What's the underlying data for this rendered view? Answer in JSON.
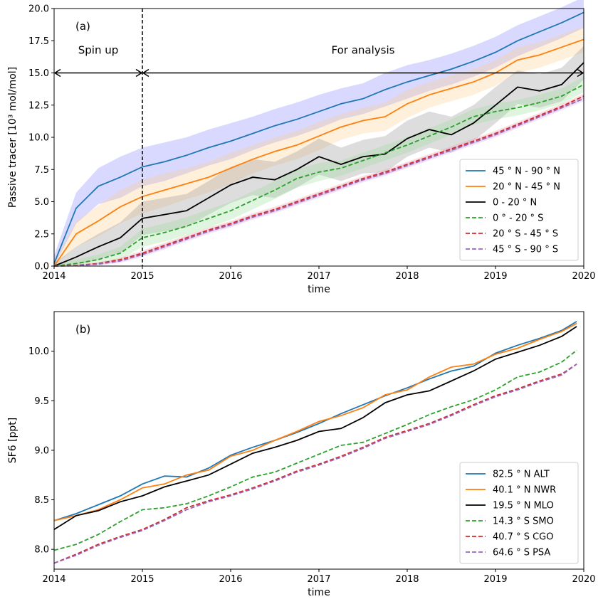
{
  "chart_data": [
    {
      "type": "line",
      "panel_label": "(a)",
      "xlabel": "time",
      "ylabel": "Passive tracer [10³ mol/mol]",
      "xlim": [
        2014,
        2020
      ],
      "ylim": [
        0,
        20
      ],
      "x_ticks": [
        "2014",
        "2015",
        "2016",
        "2017",
        "2018",
        "2019",
        "2020"
      ],
      "y_ticks": [
        "0.0",
        "2.5",
        "5.0",
        "7.5",
        "10.0",
        "12.5",
        "15.0",
        "17.5",
        "20.0"
      ],
      "grid": false,
      "legend_position": "lower-right",
      "annotations": [
        {
          "text": "Spin up",
          "x": 2014.5,
          "y": 16.5
        },
        {
          "text": "For analysis",
          "x": 2017.5,
          "y": 16.5
        }
      ],
      "vline": {
        "x": 2015,
        "style": "dashed"
      },
      "arrows": [
        {
          "from": [
            2014,
            15
          ],
          "to": [
            2015,
            15
          ]
        },
        {
          "from": [
            2015,
            15
          ],
          "to": [
            2020,
            15
          ]
        }
      ],
      "x": [
        2014.0,
        2014.25,
        2014.5,
        2014.75,
        2015.0,
        2015.25,
        2015.5,
        2015.75,
        2016.0,
        2016.25,
        2016.5,
        2016.75,
        2017.0,
        2017.25,
        2017.5,
        2017.75,
        2018.0,
        2018.25,
        2018.5,
        2018.75,
        2019.0,
        2019.25,
        2019.5,
        2019.75,
        2020.0
      ],
      "series": [
        {
          "name": "45$^\\circ$N - 90$^\\circ$N",
          "label": "45 ° N - 90 ° N",
          "color": "#1f77b4",
          "dash": "solid",
          "values": [
            0.2,
            4.5,
            6.2,
            6.9,
            7.7,
            8.1,
            8.6,
            9.2,
            9.7,
            10.3,
            10.9,
            11.4,
            12.0,
            12.6,
            13.0,
            13.7,
            14.3,
            14.8,
            15.3,
            15.9,
            16.6,
            17.5,
            18.2,
            18.9,
            19.7
          ],
          "band": [
            0.6,
            1.2,
            1.4,
            1.6,
            1.5,
            1.5,
            1.4,
            1.4,
            1.4,
            1.3,
            1.3,
            1.3,
            1.3,
            1.2,
            1.2,
            1.3,
            1.3,
            1.2,
            1.2,
            1.2,
            1.2,
            1.2,
            1.2,
            1.2,
            1.2
          ],
          "band_color": "#8080ff"
        },
        {
          "name": "20$^\\circ$N - 45$^\\circ$N",
          "label": "20 ° N - 45 ° N",
          "color": "#ff7f0e",
          "dash": "solid",
          "values": [
            0.0,
            2.5,
            3.5,
            4.6,
            5.4,
            5.9,
            6.4,
            6.9,
            7.6,
            8.3,
            8.9,
            9.4,
            10.1,
            10.8,
            11.3,
            11.6,
            12.6,
            13.3,
            13.8,
            14.3,
            15.0,
            16.0,
            16.4,
            17.0,
            17.6
          ],
          "band": [
            0.3,
            1.0,
            1.2,
            1.3,
            1.3,
            1.3,
            1.2,
            1.2,
            1.2,
            1.1,
            1.1,
            1.1,
            1.1,
            1.0,
            1.0,
            1.1,
            1.1,
            1.0,
            1.0,
            1.0,
            1.0,
            1.0,
            1.0,
            1.0,
            1.0
          ],
          "band_color": "#ffcc88"
        },
        {
          "name": "0 - 20$^\\circ$N",
          "label": "0 - 20 ° N",
          "color": "#000000",
          "dash": "solid",
          "values": [
            0.0,
            0.7,
            1.5,
            2.2,
            3.7,
            4.0,
            4.3,
            5.3,
            6.3,
            6.9,
            6.7,
            7.5,
            8.5,
            7.9,
            8.5,
            8.7,
            9.9,
            10.6,
            10.2,
            11.1,
            12.5,
            13.9,
            13.6,
            14.1,
            15.8
          ],
          "band": [
            0.2,
            0.8,
            1.0,
            1.2,
            1.3,
            1.3,
            1.3,
            1.3,
            1.4,
            1.4,
            1.4,
            1.4,
            1.4,
            1.3,
            1.3,
            1.4,
            1.4,
            1.4,
            1.4,
            1.4,
            1.4,
            1.3,
            1.3,
            1.3,
            1.3
          ],
          "band_color": "#909090"
        },
        {
          "name": "0$^\\circ$ - 20$^\\circ$S",
          "label": "0 ° - 20 ° S",
          "color": "#2ca02c",
          "dash": "dashed",
          "values": [
            0.0,
            0.2,
            0.5,
            1.0,
            2.2,
            2.6,
            3.1,
            3.7,
            4.3,
            5.1,
            5.9,
            6.8,
            7.3,
            7.6,
            8.2,
            8.8,
            9.4,
            10.1,
            10.8,
            11.6,
            12.0,
            12.3,
            12.7,
            13.2,
            14.1
          ],
          "band": [
            0.1,
            0.3,
            0.4,
            0.5,
            0.7,
            0.7,
            0.7,
            0.7,
            0.7,
            0.7,
            0.7,
            0.7,
            0.7,
            0.6,
            0.6,
            0.6,
            0.6,
            0.6,
            0.6,
            0.6,
            0.6,
            0.6,
            0.6,
            0.6,
            0.6
          ],
          "band_color": "#99dd99"
        },
        {
          "name": "20$^\\circ$S - 45$^\\circ$S",
          "label": "20 ° S - 45 ° S",
          "color": "#d62728",
          "dash": "dashed",
          "values": [
            0.0,
            0.05,
            0.2,
            0.5,
            1.0,
            1.6,
            2.2,
            2.8,
            3.3,
            3.9,
            4.4,
            5.0,
            5.6,
            6.2,
            6.8,
            7.3,
            7.9,
            8.5,
            9.1,
            9.7,
            10.3,
            11.0,
            11.7,
            12.4,
            13.2
          ],
          "band": [
            0.0,
            0.05,
            0.1,
            0.15,
            0.2,
            0.2,
            0.2,
            0.2,
            0.2,
            0.2,
            0.2,
            0.2,
            0.2,
            0.2,
            0.2,
            0.2,
            0.2,
            0.2,
            0.2,
            0.2,
            0.2,
            0.2,
            0.2,
            0.2,
            0.2
          ],
          "band_color": "#ee9999"
        },
        {
          "name": "45$^\\circ$S - 90$^\\circ$S",
          "label": "45 ° S - 90 ° S",
          "color": "#9467bd",
          "dash": "dashed",
          "values": [
            0.0,
            0.03,
            0.15,
            0.4,
            0.9,
            1.5,
            2.1,
            2.7,
            3.2,
            3.8,
            4.3,
            4.9,
            5.5,
            6.1,
            6.7,
            7.2,
            7.8,
            8.4,
            9.0,
            9.6,
            10.2,
            10.9,
            11.6,
            12.3,
            13.0
          ],
          "band": [
            0.0,
            0.05,
            0.1,
            0.15,
            0.2,
            0.2,
            0.2,
            0.2,
            0.2,
            0.2,
            0.2,
            0.2,
            0.2,
            0.2,
            0.2,
            0.2,
            0.2,
            0.2,
            0.2,
            0.2,
            0.2,
            0.2,
            0.2,
            0.2,
            0.2
          ],
          "band_color": "#ccaaee"
        }
      ]
    },
    {
      "type": "line",
      "panel_label": "(b)",
      "xlabel": "time",
      "ylabel": "SF6 [ppt]",
      "xlim": [
        2014,
        2020
      ],
      "ylim": [
        7.8,
        10.4
      ],
      "x_ticks": [
        "2014",
        "2015",
        "2016",
        "2017",
        "2018",
        "2019",
        "2020"
      ],
      "y_ticks": [
        "8.0",
        "8.5",
        "9.0",
        "9.5",
        "10.0"
      ],
      "grid": false,
      "legend_position": "lower-right",
      "x": [
        2014.0,
        2014.25,
        2014.5,
        2014.75,
        2015.0,
        2015.25,
        2015.5,
        2015.75,
        2016.0,
        2016.25,
        2016.5,
        2016.75,
        2017.0,
        2017.25,
        2017.5,
        2017.75,
        2018.0,
        2018.25,
        2018.5,
        2018.75,
        2019.0,
        2019.25,
        2019.5,
        2019.75,
        2019.92
      ],
      "series": [
        {
          "name": "82.5$^\\circ$N ALT",
          "label": "82.5 ° N ALT",
          "color": "#1f77b4",
          "dash": "solid",
          "values": [
            8.29,
            8.36,
            8.45,
            8.54,
            8.66,
            8.74,
            8.73,
            8.82,
            8.95,
            9.03,
            9.1,
            9.18,
            9.27,
            9.37,
            9.46,
            9.55,
            9.63,
            9.72,
            9.8,
            9.85,
            9.98,
            10.06,
            10.13,
            10.21,
            10.3
          ]
        },
        {
          "name": "40.1$^\\circ$N NWR",
          "label": "40.1 ° N NWR",
          "color": "#ff7f0e",
          "dash": "solid",
          "values": [
            8.29,
            8.34,
            8.4,
            8.5,
            8.62,
            8.66,
            8.75,
            8.8,
            8.94,
            9.0,
            9.1,
            9.19,
            9.29,
            9.35,
            9.43,
            9.56,
            9.61,
            9.74,
            9.84,
            9.87,
            9.97,
            10.03,
            10.12,
            10.2,
            10.28
          ]
        },
        {
          "name": "19.5$^\\circ$N MLO",
          "label": "19.5 ° N MLO",
          "color": "#000000",
          "dash": "solid",
          "values": [
            8.2,
            8.34,
            8.39,
            8.48,
            8.54,
            8.63,
            8.69,
            8.75,
            8.86,
            8.97,
            9.03,
            9.1,
            9.19,
            9.22,
            9.33,
            9.48,
            9.56,
            9.6,
            9.7,
            9.8,
            9.92,
            9.99,
            10.06,
            10.15,
            10.25
          ]
        },
        {
          "name": "14.3$^\\circ$S SMO",
          "label": "14.3 ° S SMO",
          "color": "#2ca02c",
          "dash": "dashed",
          "values": [
            7.99,
            8.05,
            8.15,
            8.28,
            8.4,
            8.42,
            8.46,
            8.54,
            8.63,
            8.73,
            8.78,
            8.87,
            8.96,
            9.05,
            9.08,
            9.17,
            9.26,
            9.36,
            9.44,
            9.51,
            9.61,
            9.74,
            9.79,
            9.89,
            10.01
          ]
        },
        {
          "name": "40.7$^\\circ$S CGO",
          "label": "40.7 ° S CGO",
          "color": "#d62728",
          "dash": "dashed",
          "values": [
            7.86,
            7.95,
            8.05,
            8.13,
            8.2,
            8.3,
            8.42,
            8.49,
            8.55,
            8.62,
            8.7,
            8.79,
            8.86,
            8.94,
            9.03,
            9.13,
            9.2,
            9.27,
            9.36,
            9.46,
            9.55,
            9.62,
            9.7,
            9.77,
            9.87
          ]
        },
        {
          "name": "64.6$^\\circ$S PSA",
          "label": "64.6 ° S PSA",
          "color": "#9467bd",
          "dash": "dashed",
          "values": [
            7.86,
            7.94,
            8.04,
            8.12,
            8.19,
            8.29,
            8.4,
            8.48,
            8.54,
            8.61,
            8.69,
            8.78,
            8.85,
            8.93,
            9.02,
            9.12,
            9.19,
            9.26,
            9.35,
            9.45,
            9.54,
            9.61,
            9.69,
            9.76,
            9.87
          ]
        }
      ]
    }
  ]
}
